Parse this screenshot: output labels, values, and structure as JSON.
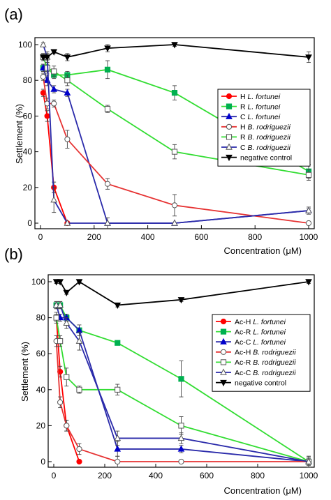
{
  "chart_data": [
    {
      "type": "line",
      "panel_label": "(a)",
      "xlabel": "Concentration (μM)",
      "ylabel": "Settlement (%)",
      "xlim": [
        0,
        1000
      ],
      "ylim": [
        0,
        100
      ],
      "xticks": [
        0,
        200,
        400,
        600,
        800,
        1000
      ],
      "yticks": [
        0,
        20,
        40,
        60,
        80,
        100
      ],
      "legend_position": "right",
      "series": [
        {
          "name": "H L. fortunei",
          "prefix": "H ",
          "species": "L. fortunei",
          "color": "#ff0000",
          "line_color": "#ff0000",
          "marker": "circle",
          "fill": "filled",
          "x": [
            10,
            25,
            50,
            100
          ],
          "y": [
            73,
            60,
            20,
            0
          ],
          "err": [
            2,
            3,
            3,
            0
          ]
        },
        {
          "name": "R L. fortunei",
          "prefix": "R ",
          "species": "L. fortunei",
          "color": "#00b050",
          "line_color": "#33dd33",
          "marker": "square",
          "fill": "filled",
          "x": [
            10,
            25,
            50,
            100,
            250,
            500,
            1000
          ],
          "y": [
            87,
            87,
            83,
            83,
            86,
            73,
            29
          ],
          "err": [
            2,
            2,
            2,
            2,
            5,
            4,
            4
          ]
        },
        {
          "name": "C L. fortunei",
          "prefix": "C ",
          "species": "L. fortunei",
          "color": "#0000cc",
          "line_color": "#2a2aaa",
          "marker": "triangle-up",
          "fill": "filled",
          "x": [
            10,
            25,
            50,
            100,
            250,
            500,
            1000
          ],
          "y": [
            87,
            80,
            75,
            73,
            0,
            0,
            7
          ],
          "err": [
            2,
            3,
            2,
            2,
            0,
            0,
            1
          ]
        },
        {
          "name": "H B. rodriguezii",
          "prefix": "H ",
          "species": "B. rodriguezii",
          "color": "#e06060",
          "line_color": "#e63232",
          "marker": "circle",
          "fill": "open",
          "x": [
            10,
            25,
            50,
            100,
            250,
            500,
            1000
          ],
          "y": [
            82,
            67,
            67,
            47,
            22,
            10,
            0
          ],
          "err": [
            2,
            3,
            2,
            5,
            3,
            6,
            0
          ]
        },
        {
          "name": "R B. rodriguezii",
          "prefix": "R ",
          "species": "B. rodriguezii",
          "color": "#00b050",
          "line_color": "#33dd33",
          "marker": "square",
          "fill": "open",
          "x": [
            10,
            25,
            50,
            100,
            250,
            500,
            1000
          ],
          "y": [
            93,
            87,
            85,
            80,
            64,
            40,
            27
          ],
          "err": [
            2,
            3,
            3,
            3,
            2,
            4,
            3
          ]
        },
        {
          "name": "C B. rodriguezii",
          "prefix": "C ",
          "species": "B. rodriguezii",
          "color": "#3333aa",
          "line_color": "#2a2aaa",
          "marker": "triangle-up",
          "fill": "open",
          "x": [
            10,
            25,
            50,
            100,
            250,
            500,
            1000
          ],
          "y": [
            100,
            93,
            13,
            0,
            0,
            0,
            7
          ],
          "err": [
            1,
            3,
            7,
            0,
            3,
            0,
            2
          ]
        },
        {
          "name": "negative control",
          "prefix": "",
          "species": "",
          "suffix": "negative control",
          "color": "#000000",
          "line_color": "#000000",
          "marker": "triangle-down",
          "fill": "filled",
          "x": [
            10,
            25,
            50,
            100,
            250,
            500,
            1000
          ],
          "y": [
            93,
            93,
            96,
            93,
            98,
            100,
            93
          ],
          "err": [
            2,
            2,
            1,
            2,
            2,
            1,
            3
          ]
        }
      ]
    },
    {
      "type": "line",
      "panel_label": "(b)",
      "xlabel": "Concentration (μM)",
      "ylabel": "Settlement (%)",
      "xlim": [
        0,
        1000
      ],
      "ylim": [
        0,
        100
      ],
      "xticks": [
        0,
        200,
        400,
        600,
        800,
        1000
      ],
      "yticks": [
        0,
        20,
        40,
        60,
        80,
        100
      ],
      "legend_position": "right",
      "series": [
        {
          "name": "Ac-H L. fortunei",
          "prefix": "Ac-H ",
          "species": "L. fortunei",
          "color": "#ff0000",
          "line_color": "#ff0000",
          "marker": "circle",
          "fill": "filled",
          "x": [
            10,
            25,
            50,
            100
          ],
          "y": [
            80,
            50,
            20,
            0
          ],
          "err": [
            2,
            3,
            3,
            0
          ]
        },
        {
          "name": "Ac-R L. fortunei",
          "prefix": "Ac-R ",
          "species": "L. fortunei",
          "color": "#00b050",
          "line_color": "#33dd33",
          "marker": "square",
          "fill": "filled",
          "x": [
            10,
            25,
            50,
            100,
            250,
            500,
            1000
          ],
          "y": [
            87,
            87,
            80,
            73,
            66,
            46,
            0
          ],
          "err": [
            1,
            2,
            2,
            1,
            1,
            10,
            3
          ]
        },
        {
          "name": "Ac-C L. fortunei",
          "prefix": "Ac-C ",
          "species": "L. fortunei",
          "color": "#0000cc",
          "line_color": "#2a2aaa",
          "marker": "triangle-up",
          "fill": "filled",
          "x": [
            10,
            25,
            50,
            100,
            250,
            500,
            1000
          ],
          "y": [
            87,
            80,
            80,
            73,
            7,
            7,
            0
          ],
          "err": [
            2,
            2,
            2,
            3,
            4,
            2,
            2
          ]
        },
        {
          "name": "Ac-H B. rodriguezii",
          "prefix": "Ac-H ",
          "species": "B. rodriguezii",
          "color": "#e06060",
          "line_color": "#e63232",
          "marker": "circle",
          "fill": "open",
          "x": [
            10,
            25,
            50,
            100,
            250,
            500,
            1000
          ],
          "y": [
            67,
            33,
            20,
            7,
            0,
            0,
            0
          ],
          "err": [
            3,
            3,
            3,
            3,
            3,
            1,
            2
          ]
        },
        {
          "name": "Ac-R B. rodriguezii",
          "prefix": "Ac-R ",
          "species": "B. rodriguezii",
          "color": "#00b050",
          "line_color": "#33dd33",
          "marker": "square",
          "fill": "open",
          "x": [
            10,
            25,
            50,
            100,
            250,
            500,
            1000
          ],
          "y": [
            80,
            67,
            47,
            40,
            40,
            20,
            0
          ],
          "err": [
            3,
            3,
            5,
            2,
            3,
            5,
            3
          ]
        },
        {
          "name": "Ac-C B. rodriguezii",
          "prefix": "Ac-C ",
          "species": "B. rodriguezii",
          "color": "#3333aa",
          "line_color": "#2a2aaa",
          "marker": "triangle-up",
          "fill": "open",
          "x": [
            10,
            25,
            50,
            100,
            250,
            500,
            1000
          ],
          "y": [
            87,
            87,
            77,
            67,
            13,
            13,
            0
          ],
          "err": [
            2,
            2,
            3,
            5,
            4,
            3,
            2
          ]
        },
        {
          "name": "negative control",
          "prefix": "",
          "species": "",
          "suffix": "negative control",
          "color": "#000000",
          "line_color": "#000000",
          "marker": "triangle-down",
          "fill": "filled",
          "x": [
            10,
            25,
            50,
            100,
            250,
            500,
            1000
          ],
          "y": [
            100,
            100,
            94,
            100,
            87,
            90,
            100
          ],
          "err": [
            1,
            1,
            1,
            1,
            1,
            1,
            1
          ]
        }
      ]
    }
  ]
}
